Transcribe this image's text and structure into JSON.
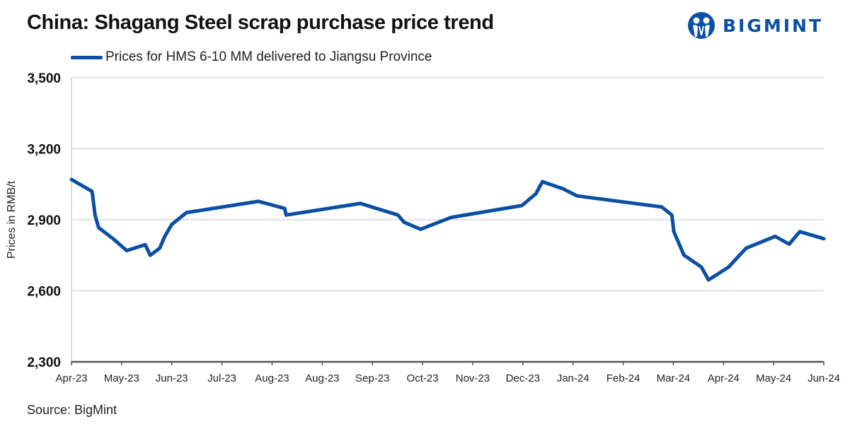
{
  "header": {
    "title": "China: Shagang Steel scrap purchase price trend",
    "logo_text": "BIGMINT",
    "logo_icon": "bigmint-people-logo-icon"
  },
  "footer": {
    "source": "Source: BigMint"
  },
  "colors": {
    "series": "#0a4fa3",
    "grid": "#dfe3e8",
    "axis": "#555555",
    "logo": "#0a4fa3"
  },
  "chart_data": {
    "type": "line",
    "title": "China: Shagang Steel scrap purchase price trend",
    "xlabel": "",
    "ylabel": "Prices in RMB/t",
    "ylim": [
      2300,
      3500
    ],
    "yticks": [
      2300,
      2600,
      2900,
      3200,
      3500
    ],
    "ytick_labels": [
      "2,300",
      "2,600",
      "2,900",
      "3,200",
      "3,500"
    ],
    "xlim": [
      0,
      15
    ],
    "xtick_labels": [
      "Apr-23",
      "May-23",
      "Jun-23",
      "Jul-23",
      "Aug-23",
      "Aug-23",
      "Sep-23",
      "Oct-23",
      "Nov-23",
      "Dec-23",
      "Jan-24",
      "Feb-24",
      "Mar-24",
      "Apr-24",
      "May-24",
      "Jun-24"
    ],
    "grid": true,
    "legend": "top-left",
    "series": [
      {
        "name": "Prices for HMS 6-10 MM delivered to Jiangsu Province",
        "x": [
          0,
          0.41,
          0.47,
          0.54,
          0.83,
          1.1,
          1.47,
          1.57,
          1.76,
          1.86,
          2.0,
          2.29,
          3.73,
          4.25,
          4.28,
          5.76,
          6.51,
          6.63,
          6.96,
          7.57,
          8.98,
          9.26,
          9.39,
          9.8,
          10.08,
          11.77,
          11.97,
          12.01,
          12.21,
          12.56,
          12.7,
          13.1,
          13.45,
          14.03,
          14.31,
          14.52,
          15.0
        ],
        "values": [
          3070,
          3020,
          2920,
          2867,
          2820,
          2770,
          2795,
          2750,
          2780,
          2830,
          2880,
          2930,
          2978,
          2948,
          2920,
          2969,
          2920,
          2890,
          2860,
          2910,
          2960,
          3010,
          3061,
          3031,
          3001,
          2954,
          2920,
          2850,
          2751,
          2700,
          2646,
          2700,
          2780,
          2830,
          2797,
          2850,
          2820
        ]
      }
    ]
  }
}
